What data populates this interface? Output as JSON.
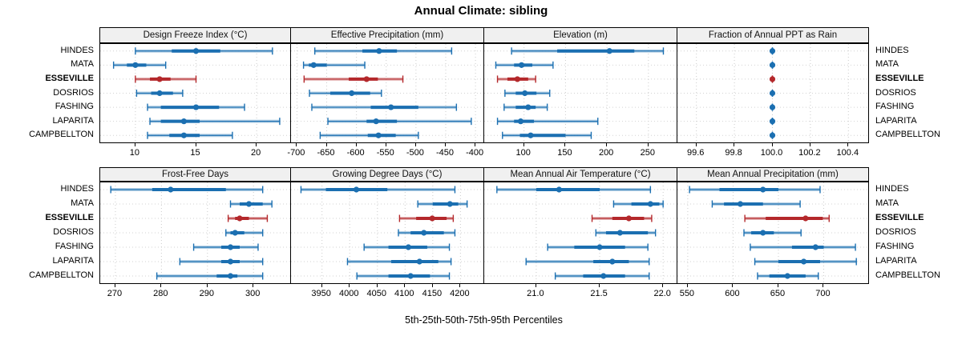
{
  "title": "Annual Climate: sibling",
  "footer": "5th-25th-50th-75th-95th Percentiles",
  "colors": {
    "station": "#1b6fb1",
    "highlight": "#b4282b",
    "band_opacity": 0.32,
    "grid": "#cccccc",
    "strip_bg": "#f0f0f0",
    "border": "#000000"
  },
  "stations": [
    {
      "name": "HINDES",
      "highlight": false
    },
    {
      "name": "MATA",
      "highlight": false
    },
    {
      "name": "ESSEVILLE",
      "highlight": true
    },
    {
      "name": "DOSRIOS",
      "highlight": false
    },
    {
      "name": "FASHING",
      "highlight": false
    },
    {
      "name": "LAPARITA",
      "highlight": false
    },
    {
      "name": "CAMPBELLTON",
      "highlight": false
    }
  ],
  "chart_data": {
    "type": "percentile-dotplot",
    "layout": "2 rows x 4 columns of panels, shared y categories (stations), dotted grid, no legend",
    "percentiles": [
      "5th",
      "25th",
      "50th",
      "75th",
      "95th"
    ],
    "highlight_station": "ESSEVILLE",
    "panels": [
      {
        "title": "Design Freeze Index (°C)",
        "slug": "design-freeze-index",
        "grid_row": 0,
        "grid_col": 0,
        "xlim": [
          7.1,
          22.7
        ],
        "tick_values": [
          10,
          15,
          20
        ],
        "tick_labels": [
          "10",
          "15",
          "20"
        ],
        "values": [
          [
            10,
            13,
            15,
            17,
            21.3
          ],
          [
            8.2,
            9.3,
            10,
            10.9,
            12.5
          ],
          [
            10,
            11.2,
            12,
            12.9,
            15
          ],
          [
            10.1,
            11.3,
            12,
            13.1,
            13.9
          ],
          [
            11,
            12.1,
            15,
            16.9,
            19
          ],
          [
            11.2,
            12.1,
            14,
            15.3,
            21.9
          ],
          [
            11,
            12.8,
            14,
            15.3,
            18
          ]
        ]
      },
      {
        "title": "Effective Precipitation (mm)",
        "slug": "effective-precipitation",
        "grid_row": 0,
        "grid_col": 1,
        "xlim": [
          -710,
          -388
        ],
        "tick_values": [
          -700,
          -650,
          -600,
          -550,
          -500,
          -450,
          -400
        ],
        "tick_labels": [
          "-700",
          "-650",
          "-600",
          "-550",
          "-500",
          "-450",
          "-400"
        ],
        "values": [
          [
            -670,
            -590,
            -562,
            -532,
            -440
          ],
          [
            -689,
            -680,
            -672,
            -650,
            -586
          ],
          [
            -688,
            -613,
            -583,
            -564,
            -522
          ],
          [
            -679,
            -644,
            -608,
            -577,
            -558
          ],
          [
            -675,
            -576,
            -542,
            -496,
            -432
          ],
          [
            -648,
            -583,
            -567,
            -532,
            -407
          ],
          [
            -661,
            -581,
            -563,
            -534,
            -496
          ]
        ]
      },
      {
        "title": "Elevation (m)",
        "slug": "elevation",
        "grid_row": 0,
        "grid_col": 2,
        "xlim": [
          52,
          283
        ],
        "tick_values": [
          100,
          150,
          200,
          250
        ],
        "tick_labels": [
          "100",
          "150",
          "200",
          "250"
        ],
        "values": [
          [
            85,
            140,
            203,
            233,
            268
          ],
          [
            66,
            88,
            97,
            110,
            135
          ],
          [
            68,
            80,
            92,
            105,
            114
          ],
          [
            77,
            90,
            101,
            115,
            131
          ],
          [
            76,
            90,
            105,
            114,
            128
          ],
          [
            68,
            88,
            96,
            112,
            189
          ],
          [
            74,
            95,
            108,
            150,
            181
          ]
        ]
      },
      {
        "title": "Fraction of Annual PPT as Rain",
        "slug": "fraction-of-annual-ppt-as-rain",
        "grid_row": 0,
        "grid_col": 3,
        "xlim": [
          99.5,
          100.5
        ],
        "tick_values": [
          99.6,
          99.8,
          100.0,
          100.2,
          100.4
        ],
        "tick_labels": [
          "99.6",
          "99.8",
          "100.0",
          "100.2",
          "100.4"
        ],
        "values": [
          [
            100,
            100,
            100,
            100,
            100
          ],
          [
            100,
            100,
            100,
            100,
            100
          ],
          [
            100,
            100,
            100,
            100,
            100
          ],
          [
            100,
            100,
            100,
            100,
            100
          ],
          [
            100,
            100,
            100,
            100,
            100
          ],
          [
            100,
            100,
            100,
            100,
            100
          ],
          [
            100,
            100,
            100,
            100,
            100
          ]
        ]
      },
      {
        "title": "Frost-Free Days",
        "slug": "frost-free-days",
        "grid_row": 1,
        "grid_col": 0,
        "xlim": [
          266.7,
          307.8
        ],
        "tick_values": [
          270,
          280,
          290,
          300
        ],
        "tick_labels": [
          "270",
          "280",
          "290",
          "300"
        ],
        "values": [
          [
            269,
            278,
            282,
            294,
            302
          ],
          [
            295,
            297,
            299,
            302,
            304
          ],
          [
            294.5,
            296,
            297,
            299,
            303
          ],
          [
            294,
            295,
            296,
            298,
            302
          ],
          [
            287,
            293,
            295,
            297,
            301
          ],
          [
            284,
            293,
            295,
            297,
            302
          ],
          [
            279,
            292,
            295,
            296.5,
            302
          ]
        ]
      },
      {
        "title": "Growing Degree Days (°C)",
        "slug": "growing-degree-days",
        "grid_row": 1,
        "grid_col": 1,
        "xlim": [
          3894,
          4240
        ],
        "tick_values": [
          3950,
          4000,
          4050,
          4100,
          4150,
          4200
        ],
        "tick_labels": [
          "3950",
          "4000",
          "4050",
          "4100",
          "4150",
          "4200"
        ],
        "values": [
          [
            3912,
            3957,
            4012,
            4068,
            4190
          ],
          [
            4123,
            4150,
            4181,
            4196,
            4212
          ],
          [
            4090,
            4120,
            4149,
            4175,
            4187
          ],
          [
            4088,
            4110,
            4134,
            4170,
            4190
          ],
          [
            4026,
            4070,
            4106,
            4140,
            4180
          ],
          [
            3996,
            4075,
            4126,
            4160,
            4183
          ],
          [
            4013,
            4070,
            4110,
            4145,
            4180
          ]
        ]
      },
      {
        "title": "Mean Annual Air Temperature (°C)",
        "slug": "mean-annual-air-temperature",
        "grid_row": 1,
        "grid_col": 2,
        "xlim": [
          20.59,
          22.1
        ],
        "tick_values": [
          21.0,
          21.5,
          22.0
        ],
        "tick_labels": [
          "21.0",
          "21.5",
          "22.0"
        ],
        "values": [
          [
            20.69,
            21.0,
            21.18,
            21.5,
            21.9
          ],
          [
            21.61,
            21.75,
            21.9,
            21.97,
            22.0
          ],
          [
            21.44,
            21.6,
            21.73,
            21.85,
            21.91
          ],
          [
            21.47,
            21.55,
            21.66,
            21.88,
            21.94
          ],
          [
            21.09,
            21.3,
            21.5,
            21.7,
            21.88
          ],
          [
            20.92,
            21.45,
            21.6,
            21.73,
            21.89
          ],
          [
            21.15,
            21.37,
            21.53,
            21.7,
            21.89
          ]
        ]
      },
      {
        "title": "Mean Annual Precipitation (mm)",
        "slug": "mean-annual-precipitation",
        "grid_row": 1,
        "grid_col": 3,
        "xlim": [
          538.6,
          748.2
        ],
        "tick_values": [
          550,
          600,
          650,
          700
        ],
        "tick_labels": [
          "550",
          "600",
          "650",
          "700"
        ],
        "values": [
          [
            552,
            585,
            633,
            650,
            696
          ],
          [
            577,
            590,
            608,
            633,
            674
          ],
          [
            613,
            636,
            680,
            699,
            706
          ],
          [
            612,
            620,
            633,
            645,
            675
          ],
          [
            619,
            665,
            691,
            700,
            735
          ],
          [
            624,
            650,
            678,
            696,
            736
          ],
          [
            627,
            640,
            660,
            680,
            694
          ]
        ]
      }
    ]
  }
}
